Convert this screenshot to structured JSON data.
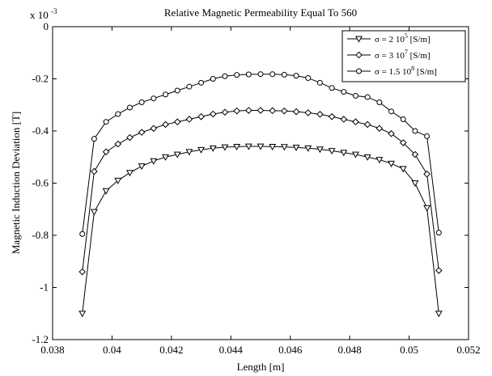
{
  "chart_data": {
    "type": "line",
    "title": "Relative Magnetic Permeability Equal To 560",
    "xlabel": "Length [m]",
    "ylabel": "Magnetic Induction Deviation [T]",
    "y_multiplier_label": {
      "prefix": "x 10",
      "exponent": "-3"
    },
    "xlim": [
      0.038,
      0.052
    ],
    "ylim": [
      -1.2,
      0
    ],
    "xticks": [
      0.038,
      0.04,
      0.042,
      0.044,
      0.046,
      0.048,
      0.05,
      0.052
    ],
    "xtick_labels": [
      "0.038",
      "0.04",
      "0.042",
      "0.044",
      "0.046",
      "0.048",
      "0.05",
      "0.052"
    ],
    "yticks": [
      0,
      -0.2,
      -0.4,
      -0.6,
      -0.8,
      -1,
      -1.2
    ],
    "ytick_labels": [
      "0",
      "-0.2",
      "-0.4",
      "-0.6",
      "-0.8",
      "-1",
      "-1.2"
    ],
    "grid": false,
    "legend_position": "top-right",
    "x": [
      0.039,
      0.0394,
      0.0398,
      0.0402,
      0.0406,
      0.041,
      0.0414,
      0.0418,
      0.0422,
      0.0426,
      0.043,
      0.0434,
      0.0438,
      0.0442,
      0.0446,
      0.045,
      0.0454,
      0.0458,
      0.0462,
      0.0466,
      0.047,
      0.0474,
      0.0478,
      0.0482,
      0.0486,
      0.049,
      0.0494,
      0.0498,
      0.0502,
      0.0506,
      0.051
    ],
    "series": [
      {
        "name_prefix": "σ = 2 10",
        "name_exp": "5",
        "name_suffix": " [S/m]",
        "marker": "triangle-down",
        "values": [
          -1.1,
          -0.71,
          -0.63,
          -0.59,
          -0.56,
          -0.535,
          -0.515,
          -0.5,
          -0.49,
          -0.48,
          -0.472,
          -0.466,
          -0.462,
          -0.46,
          -0.459,
          -0.459,
          -0.46,
          -0.461,
          -0.463,
          -0.466,
          -0.47,
          -0.476,
          -0.483,
          -0.49,
          -0.5,
          -0.51,
          -0.525,
          -0.545,
          -0.6,
          -0.695,
          -1.1
        ]
      },
      {
        "name_prefix": "σ = 3 10",
        "name_exp": "7",
        "name_suffix": " [S/m]",
        "marker": "diamond",
        "values": [
          -0.94,
          -0.555,
          -0.48,
          -0.45,
          -0.425,
          -0.405,
          -0.39,
          -0.375,
          -0.365,
          -0.355,
          -0.345,
          -0.335,
          -0.328,
          -0.323,
          -0.321,
          -0.321,
          -0.322,
          -0.323,
          -0.326,
          -0.33,
          -0.336,
          -0.345,
          -0.355,
          -0.365,
          -0.375,
          -0.39,
          -0.41,
          -0.445,
          -0.49,
          -0.565,
          -0.935
        ]
      },
      {
        "name_prefix": "σ = 1.5 10",
        "name_exp": "8",
        "name_suffix": " [S/m]",
        "marker": "circle",
        "values": [
          -0.795,
          -0.43,
          -0.365,
          -0.335,
          -0.31,
          -0.29,
          -0.275,
          -0.26,
          -0.245,
          -0.23,
          -0.215,
          -0.2,
          -0.19,
          -0.185,
          -0.183,
          -0.182,
          -0.182,
          -0.184,
          -0.188,
          -0.197,
          -0.215,
          -0.235,
          -0.25,
          -0.265,
          -0.27,
          -0.29,
          -0.325,
          -0.355,
          -0.4,
          -0.42,
          -0.79
        ]
      }
    ]
  }
}
